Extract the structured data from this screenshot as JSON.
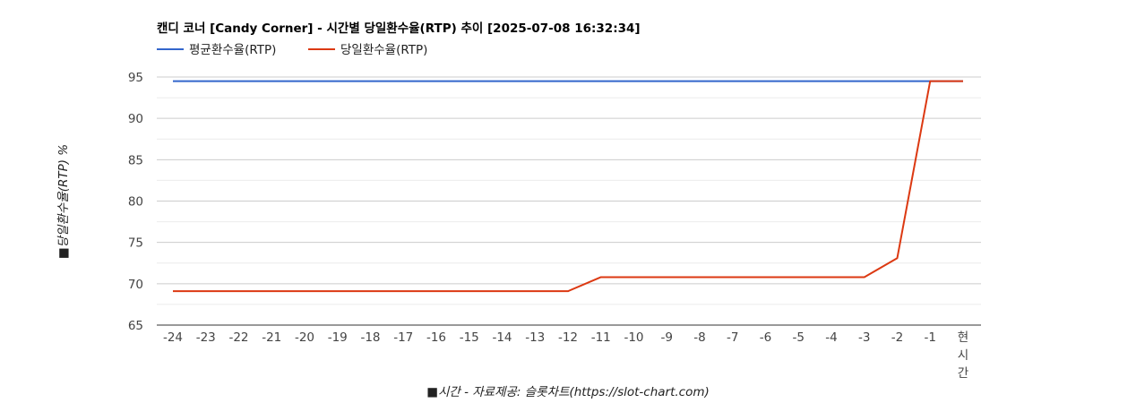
{
  "chart_data": {
    "type": "line",
    "title": "캔디 코너 [Candy Corner] - 시간별 당일환수율(RTP) 추이 [2025-07-08 16:32:34]",
    "xlabel": "■시간 - 자료제공: 슬롯차트(https://slot-chart.com)",
    "ylabel": "■당일환수율(RTP) %",
    "categories": [
      "-24",
      "-23",
      "-22",
      "-21",
      "-20",
      "-19",
      "-18",
      "-17",
      "-16",
      "-15",
      "-14",
      "-13",
      "-12",
      "-11",
      "-10",
      "-9",
      "-8",
      "-7",
      "-6",
      "-5",
      "-4",
      "-3",
      "-2",
      "-1",
      "현시간"
    ],
    "ylim": [
      65,
      95
    ],
    "yticks": [
      65,
      70,
      75,
      80,
      85,
      90,
      95
    ],
    "grid": true,
    "legend_position": "top-left",
    "series": [
      {
        "name": "평균환수율(RTP)",
        "color": "#3366cc",
        "values": [
          94.5,
          94.5,
          94.5,
          94.5,
          94.5,
          94.5,
          94.5,
          94.5,
          94.5,
          94.5,
          94.5,
          94.5,
          94.5,
          94.5,
          94.5,
          94.5,
          94.5,
          94.5,
          94.5,
          94.5,
          94.5,
          94.5,
          94.5,
          94.5,
          94.5
        ]
      },
      {
        "name": "당일환수율(RTP)",
        "color": "#dc3912",
        "values": [
          69.1,
          69.1,
          69.1,
          69.1,
          69.1,
          69.1,
          69.1,
          69.1,
          69.1,
          69.1,
          69.1,
          69.1,
          69.1,
          70.8,
          70.8,
          70.8,
          70.8,
          70.8,
          70.8,
          70.8,
          70.8,
          70.8,
          73.1,
          94.5,
          94.5
        ]
      }
    ]
  }
}
